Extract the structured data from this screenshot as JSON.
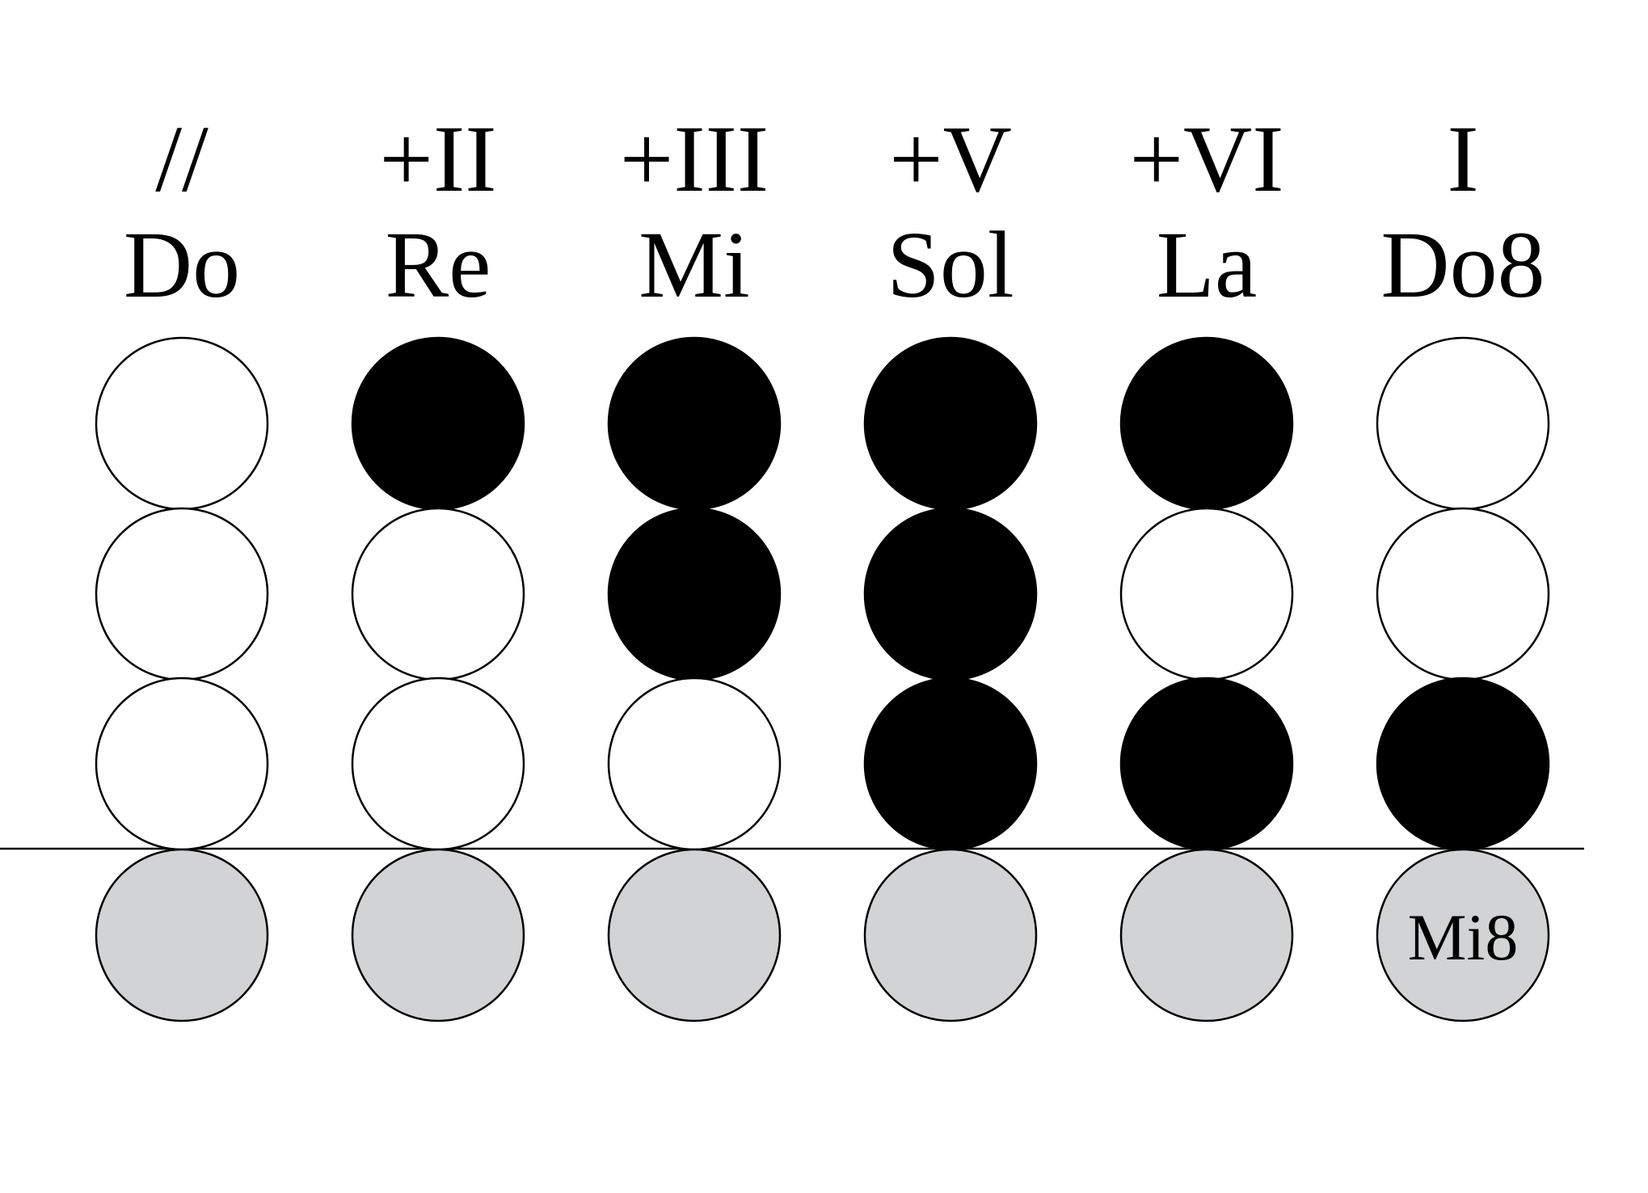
{
  "columns": [
    {
      "degree": "//",
      "note": "Do",
      "holes": [
        "open",
        "open",
        "open"
      ],
      "thumb": "half",
      "thumb_label": ""
    },
    {
      "degree": "+II",
      "note": "Re",
      "holes": [
        "closed",
        "open",
        "open"
      ],
      "thumb": "half",
      "thumb_label": ""
    },
    {
      "degree": "+III",
      "note": "Mi",
      "holes": [
        "closed",
        "closed",
        "open"
      ],
      "thumb": "half",
      "thumb_label": ""
    },
    {
      "degree": "+V",
      "note": "Sol",
      "holes": [
        "closed",
        "closed",
        "closed"
      ],
      "thumb": "half",
      "thumb_label": ""
    },
    {
      "degree": "+VI",
      "note": "La",
      "holes": [
        "closed",
        "open",
        "closed"
      ],
      "thumb": "half",
      "thumb_label": ""
    },
    {
      "degree": "I",
      "note": "Do8",
      "holes": [
        "open",
        "open",
        "closed"
      ],
      "thumb": "half",
      "thumb_label": "Mi8"
    }
  ],
  "colors": {
    "open": "#ffffff",
    "closed": "#000000",
    "half": "#d1d3d4",
    "stroke": "#000000"
  }
}
